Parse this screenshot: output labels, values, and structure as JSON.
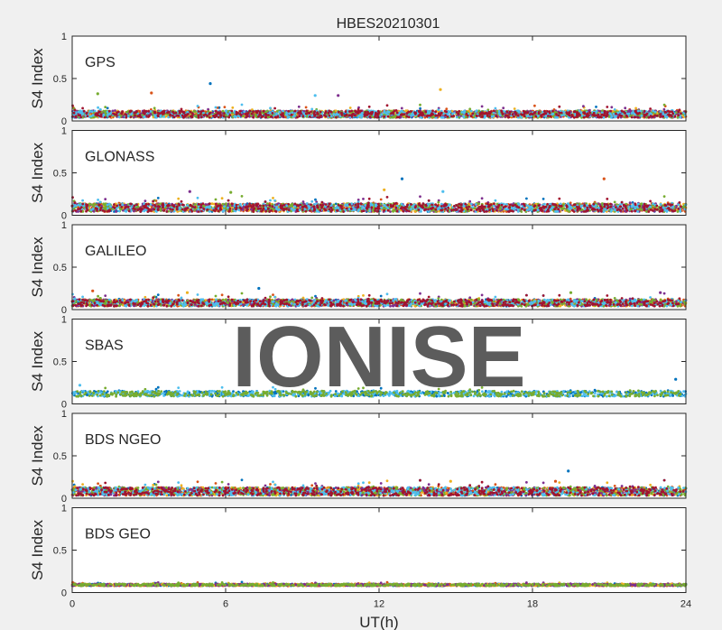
{
  "figure": {
    "title": "HBES20210301",
    "xlabel": "UT(h)",
    "watermark": "IONISE"
  },
  "chart_data": [
    {
      "type": "scatter",
      "panel_label": "GPS",
      "ylabel": "S4 Index",
      "xlim": [
        0,
        24
      ],
      "ylim": [
        0,
        1
      ],
      "xticks": [
        0,
        6,
        12,
        18,
        24
      ],
      "yticks": [
        0,
        0.5,
        1
      ],
      "grid": false,
      "baseline": 0.08,
      "spread": 0.05,
      "series": [
        {
          "color": "#0072BD"
        },
        {
          "color": "#D95319"
        },
        {
          "color": "#EDB120"
        },
        {
          "color": "#7E2F8E"
        },
        {
          "color": "#77AC30"
        },
        {
          "color": "#4DBEEE"
        },
        {
          "color": "#A2142F"
        }
      ],
      "outliers": [
        [
          5.4,
          0.44
        ],
        [
          3.1,
          0.33
        ],
        [
          14.4,
          0.37
        ],
        [
          10.4,
          0.3
        ],
        [
          1.0,
          0.32
        ],
        [
          9.5,
          0.3
        ]
      ]
    },
    {
      "type": "scatter",
      "panel_label": "GLONASS",
      "ylabel": "S4 Index",
      "xlim": [
        0,
        24
      ],
      "ylim": [
        0,
        1
      ],
      "xticks": [
        0,
        6,
        12,
        18,
        24
      ],
      "yticks": [
        0,
        0.5,
        1
      ],
      "grid": false,
      "baseline": 0.09,
      "spread": 0.06,
      "series": [
        {
          "color": "#0072BD"
        },
        {
          "color": "#D95319"
        },
        {
          "color": "#EDB120"
        },
        {
          "color": "#7E2F8E"
        },
        {
          "color": "#77AC30"
        },
        {
          "color": "#4DBEEE"
        },
        {
          "color": "#A2142F"
        }
      ],
      "outliers": [
        [
          12.9,
          0.43
        ],
        [
          20.8,
          0.43
        ],
        [
          12.2,
          0.3
        ],
        [
          4.6,
          0.28
        ],
        [
          6.2,
          0.27
        ],
        [
          14.5,
          0.28
        ]
      ]
    },
    {
      "type": "scatter",
      "panel_label": "GALILEO",
      "ylabel": "S4 Index",
      "xlim": [
        0,
        24
      ],
      "ylim": [
        0,
        1
      ],
      "xticks": [
        0,
        6,
        12,
        18,
        24
      ],
      "yticks": [
        0,
        0.5,
        1
      ],
      "grid": false,
      "baseline": 0.08,
      "spread": 0.05,
      "series": [
        {
          "color": "#0072BD"
        },
        {
          "color": "#D95319"
        },
        {
          "color": "#EDB120"
        },
        {
          "color": "#7E2F8E"
        },
        {
          "color": "#77AC30"
        },
        {
          "color": "#4DBEEE"
        },
        {
          "color": "#A2142F"
        }
      ],
      "outliers": [
        [
          7.3,
          0.25
        ],
        [
          0.8,
          0.22
        ],
        [
          4.5,
          0.2
        ],
        [
          23.0,
          0.2
        ],
        [
          19.5,
          0.2
        ]
      ]
    },
    {
      "type": "scatter",
      "panel_label": "SBAS",
      "ylabel": "S4 Index",
      "xlim": [
        0,
        24
      ],
      "ylim": [
        0,
        1
      ],
      "xticks": [
        0,
        6,
        12,
        18,
        24
      ],
      "yticks": [
        0,
        0.5,
        1
      ],
      "grid": false,
      "baseline": 0.12,
      "spread": 0.04,
      "series": [
        {
          "color": "#0072BD"
        },
        {
          "color": "#4DBEEE"
        },
        {
          "color": "#77AC30"
        }
      ],
      "outliers": [
        [
          23.6,
          0.29
        ],
        [
          0.3,
          0.22
        ]
      ]
    },
    {
      "type": "scatter",
      "panel_label": "BDS NGEO",
      "ylabel": "S4 Index",
      "xlim": [
        0,
        24
      ],
      "ylim": [
        0,
        1
      ],
      "xticks": [
        0,
        6,
        12,
        18,
        24
      ],
      "yticks": [
        0,
        0.5,
        1
      ],
      "grid": false,
      "baseline": 0.08,
      "spread": 0.06,
      "series": [
        {
          "color": "#0072BD"
        },
        {
          "color": "#D95319"
        },
        {
          "color": "#EDB120"
        },
        {
          "color": "#7E2F8E"
        },
        {
          "color": "#77AC30"
        },
        {
          "color": "#4DBEEE"
        },
        {
          "color": "#A2142F"
        }
      ],
      "outliers": [
        [
          19.4,
          0.32
        ],
        [
          18.9,
          0.2
        ],
        [
          14.8,
          0.2
        ]
      ]
    },
    {
      "type": "scatter",
      "panel_label": "BDS GEO",
      "ylabel": "S4 Index",
      "xlim": [
        0,
        24
      ],
      "ylim": [
        0,
        1
      ],
      "xticks": [
        0,
        6,
        12,
        18,
        24
      ],
      "yticks": [
        0,
        0.5,
        1
      ],
      "grid": false,
      "baseline": 0.09,
      "spread": 0.015,
      "series": [
        {
          "color": "#0072BD"
        },
        {
          "color": "#D95319"
        },
        {
          "color": "#EDB120"
        },
        {
          "color": "#7E2F8E"
        },
        {
          "color": "#77AC30"
        }
      ],
      "outliers": []
    }
  ]
}
